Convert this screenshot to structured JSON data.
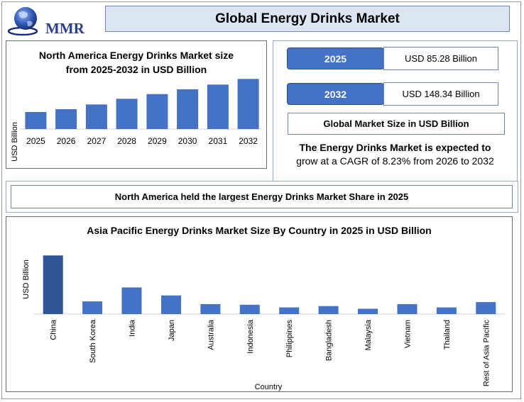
{
  "brand": {
    "logo_text": "MMR"
  },
  "header": {
    "title": "Global Energy Drinks Market"
  },
  "kpis": [
    {
      "year": "2025",
      "value": "USD 85.28 Billion"
    },
    {
      "year": "2032",
      "value": "USD 148.34 Billion"
    }
  ],
  "global_market_label": "Global Market Size in USD Billion",
  "cagr": {
    "line1": "The Energy Drinks Market is expected to",
    "line2": "grow at a CAGR of 8.23% from 2026 to 2032"
  },
  "share_statement": "North America held the largest Energy Drinks Market Share in 2025",
  "colors": {
    "bar": "#4472c4",
    "bar_highlight": "#2f5597",
    "accent": "#2b3f8e"
  },
  "chart_data": [
    {
      "type": "bar",
      "title": "North America Energy Drinks Market size from 2025-2032 in USD Billion",
      "title_lines": [
        "North America Energy Drinks Market size",
        "from 2025-2032 in USD Billion"
      ],
      "xlabel": "",
      "ylabel": "USD Billion",
      "categories": [
        "2025",
        "2026",
        "2027",
        "2028",
        "2029",
        "2030",
        "2031",
        "2032"
      ],
      "values": [
        18,
        21,
        26,
        32,
        37,
        42,
        47,
        53
      ],
      "ylim": [
        0,
        60
      ],
      "grid": false,
      "legend": "none"
    },
    {
      "type": "bar",
      "title": "Asia Pacific Energy Drinks Market Size By Country in 2025 in USD Billion",
      "xlabel": "Country",
      "ylabel": "USD Billion",
      "categories": [
        "China",
        "South Korea",
        "India",
        "Japan",
        "Australia",
        "Indonesia",
        "Philippines",
        "Bangladesh",
        "Malaysia",
        "Vietnam",
        "Thailand",
        "Rest of Asia Pacific"
      ],
      "values": [
        8.8,
        1.9,
        4.0,
        2.8,
        1.5,
        1.4,
        1.0,
        1.2,
        0.8,
        1.5,
        1.0,
        1.8
      ],
      "ylim": [
        0,
        10
      ],
      "grid": false,
      "legend": "none"
    }
  ]
}
